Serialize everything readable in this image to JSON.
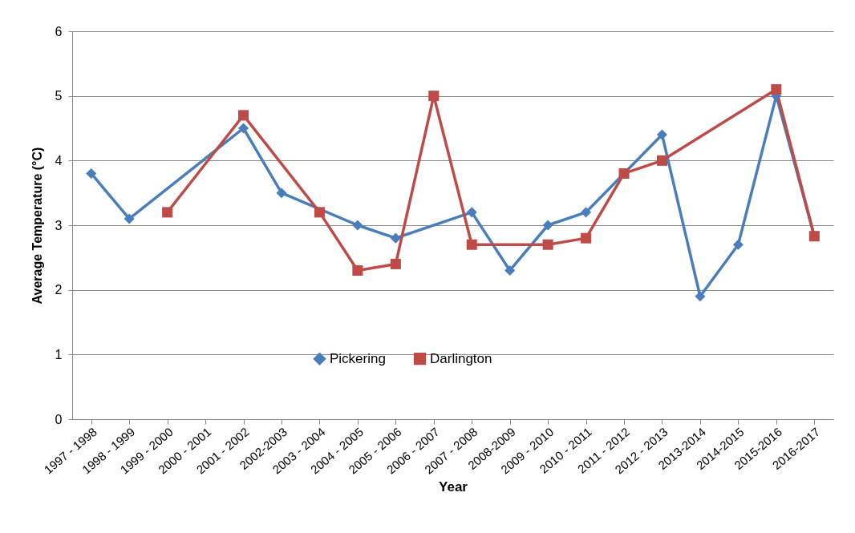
{
  "chart_data": {
    "type": "line",
    "xlabel": "Year",
    "ylabel": "Average Temperature (°C)",
    "categories": [
      "1997 - 1998",
      "1998 - 1999",
      "1999 - 2000",
      "2000 - 2001",
      "2001 - 2002",
      "2002-2003",
      "2003 - 2004",
      "2004 - 2005",
      "2005 - 2006",
      "2006 - 2007",
      "2007 - 2008",
      "2008-2009",
      "2009 - 2010",
      "2010 - 2011",
      "2011 - 2012",
      "2012 - 2013",
      "2013-2014",
      "2014-2015",
      "2015-2016",
      "2016-2017"
    ],
    "series": [
      {
        "name": "Pickering",
        "color": "#4a7ebb",
        "marker": "diamond",
        "values": [
          3.8,
          3.1,
          null,
          null,
          4.5,
          3.5,
          null,
          3.0,
          2.8,
          null,
          3.2,
          2.3,
          3.0,
          3.2,
          null,
          4.4,
          1.9,
          2.7,
          5.0,
          2.83
        ]
      },
      {
        "name": "Darlington",
        "color": "#be4b48",
        "marker": "square",
        "values": [
          null,
          null,
          3.2,
          null,
          4.7,
          null,
          3.2,
          2.3,
          2.4,
          5.0,
          2.7,
          null,
          2.7,
          2.8,
          3.8,
          4.0,
          null,
          null,
          5.1,
          2.83
        ]
      }
    ],
    "ylim": [
      0,
      6
    ],
    "yticks": [
      0,
      1,
      2,
      3,
      4,
      5,
      6
    ],
    "grid": "y",
    "legend": "bottom"
  }
}
